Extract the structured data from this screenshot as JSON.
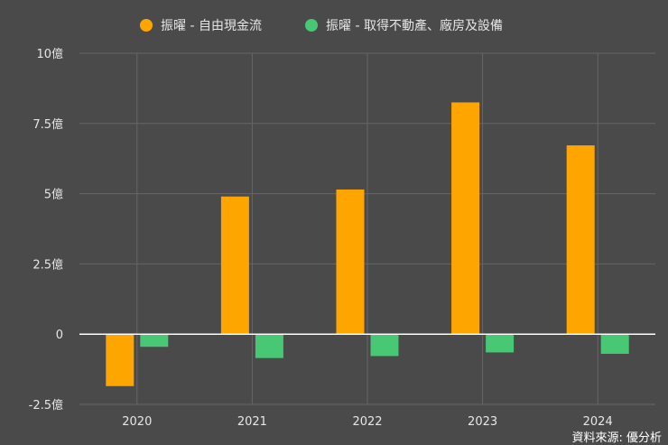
{
  "chart_data": {
    "type": "bar",
    "title": "",
    "xlabel": "",
    "ylabel": "",
    "categories": [
      "2020",
      "2021",
      "2022",
      "2023",
      "2024"
    ],
    "series": [
      {
        "name": "振曜 - 自由現金流",
        "color": "#ffa500",
        "values": [
          -1.85,
          4.9,
          5.15,
          8.25,
          6.72
        ]
      },
      {
        "name": "振曜 - 取得不動產、廠房及設備",
        "color": "#48c774",
        "values": [
          -0.45,
          -0.85,
          -0.78,
          -0.65,
          -0.7
        ]
      }
    ],
    "ylim": [
      -2.5,
      10
    ],
    "yticks": [
      {
        "value": -2.5,
        "label": "-2.5億"
      },
      {
        "value": 0,
        "label": "0"
      },
      {
        "value": 2.5,
        "label": "2.5億"
      },
      {
        "value": 5,
        "label": "5億"
      },
      {
        "value": 7.5,
        "label": "7.5億"
      },
      {
        "value": 10,
        "label": "10億"
      }
    ],
    "legend_position": "top",
    "grid": true
  },
  "source": "資料來源: 優分析",
  "colors": {
    "background": "#4a4a4a",
    "grid": "#666666",
    "zero_line": "#ffffff",
    "text": "#e6e6e6"
  }
}
